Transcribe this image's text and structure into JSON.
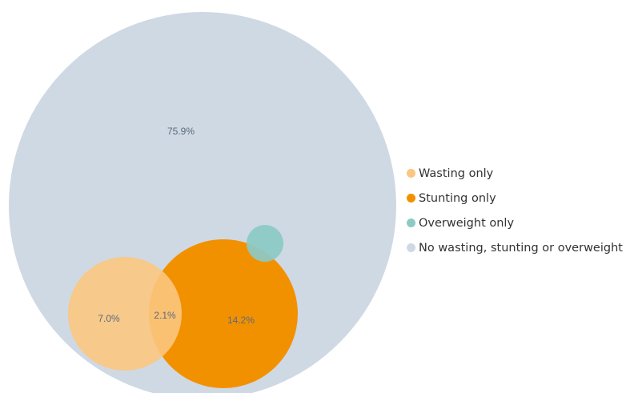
{
  "chart_data": {
    "type": "venn",
    "title": "",
    "sets": [
      {
        "name": "No wasting, stunting or overweight",
        "value": 75.9,
        "color": "#cfd9e4"
      },
      {
        "name": "Wasting only",
        "value": 7.0,
        "color": "#fbc67f"
      },
      {
        "name": "Stunting only",
        "value": 14.2,
        "color": "#f29100"
      },
      {
        "name": "Overweight only",
        "value": null,
        "color": "#8ccac6"
      }
    ],
    "labels": [
      {
        "set": "No wasting, stunting or overweight",
        "text": "75.9%"
      },
      {
        "set": "Wasting only",
        "text": "7.0%"
      },
      {
        "set": "Wasting and stunting overlap",
        "text": "2.1%"
      },
      {
        "set": "Stunting only",
        "text": "14.2%"
      }
    ],
    "legend": {
      "position": "right",
      "items": [
        {
          "label": "Wasting only",
          "color": "#fbc67f"
        },
        {
          "label": "Stunting only",
          "color": "#f29100"
        },
        {
          "label": "Overweight only",
          "color": "#8ccac6"
        },
        {
          "label": "No wasting, stunting or overweight",
          "color": "#cfd9e4"
        }
      ]
    }
  }
}
